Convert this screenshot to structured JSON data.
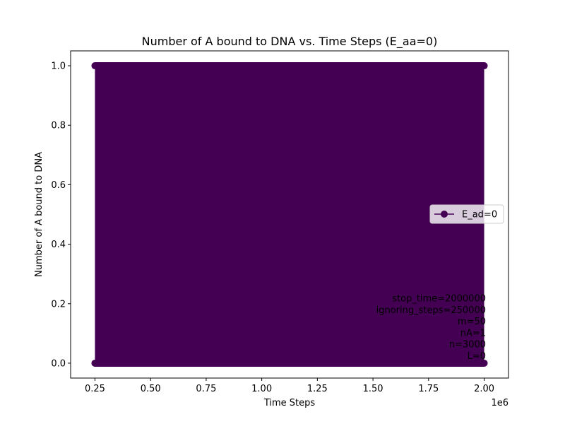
{
  "chart_data": {
    "type": "line",
    "title": "Number of A bound to DNA vs. Time Steps (E_aa=0)",
    "xlabel": "Time Steps",
    "ylabel": "Number of A bound to DNA",
    "x_offset_label": "1e6",
    "xlim": [
      140625,
      2109375
    ],
    "ylim": [
      -0.05,
      1.05
    ],
    "x_ticks": [
      250000,
      500000,
      750000,
      1000000,
      1250000,
      1500000,
      1750000,
      2000000
    ],
    "x_tick_labels": [
      "0.25",
      "0.50",
      "0.75",
      "1.00",
      "1.25",
      "1.50",
      "1.75",
      "2.00"
    ],
    "y_ticks": [
      0,
      0.2,
      0.4,
      0.6,
      0.8,
      1.0
    ],
    "y_tick_labels": [
      "0.0",
      "0.2",
      "0.4",
      "0.6",
      "0.8",
      "1.0"
    ],
    "grid": false,
    "legend_placement": "center-right",
    "series": [
      {
        "name": "E_ad=0",
        "color": "#440154",
        "marker": "circle",
        "x_start": 250000,
        "x_end": 2000000,
        "values": [
          0,
          1
        ]
      }
    ],
    "annotation_lines": [
      "stop_time=2000000",
      "ignoring_steps=250000",
      "m=50",
      "nA=1",
      "n=3000",
      "L=0"
    ]
  }
}
